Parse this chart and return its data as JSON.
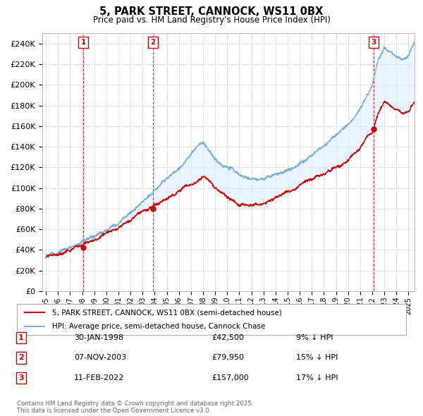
{
  "title": "5, PARK STREET, CANNOCK, WS11 0BX",
  "subtitle": "Price paid vs. HM Land Registry's House Price Index (HPI)",
  "legend_line1": "5, PARK STREET, CANNOCK, WS11 0BX (semi-detached house)",
  "legend_line2": "HPI: Average price, semi-detached house, Cannock Chase",
  "sale_color": "#cc0000",
  "hpi_color": "#7ab0d4",
  "fill_color": "#ddeeff",
  "ylim": [
    0,
    250000
  ],
  "ytick_step": 20000,
  "xlim_start": 1995.0,
  "xlim_end": 2025.5,
  "transactions": [
    {
      "num": 1,
      "date_label": "30-JAN-1998",
      "price": 42500,
      "pct": "9%",
      "x_year": 1998.08
    },
    {
      "num": 2,
      "date_label": "07-NOV-2003",
      "price": 79950,
      "pct": "15%",
      "x_year": 2003.85
    },
    {
      "num": 3,
      "date_label": "11-FEB-2022",
      "price": 157000,
      "pct": "17%",
      "x_year": 2022.12
    }
  ],
  "footer": "Contains HM Land Registry data © Crown copyright and database right 2025.\nThis data is licensed under the Open Government Licence v3.0.",
  "background_color": "#ffffff",
  "grid_color": "#dddddd"
}
